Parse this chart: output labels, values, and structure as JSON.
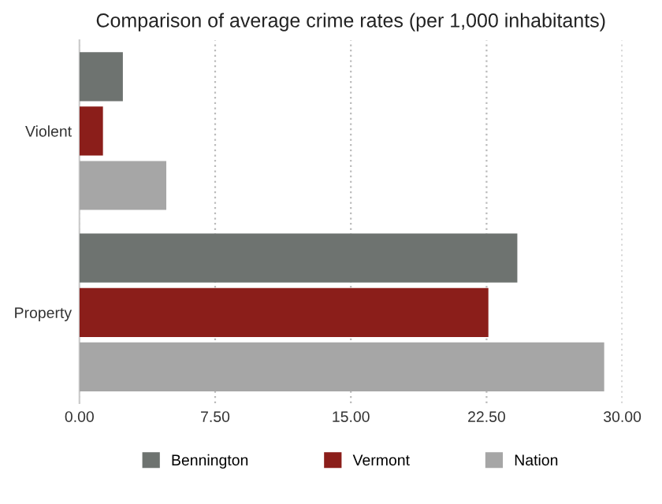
{
  "chart_data": {
    "type": "bar",
    "orientation": "horizontal",
    "title": "Comparison of average crime rates (per 1,000 inhabitants)",
    "categories": [
      "Violent",
      "Property"
    ],
    "series": [
      {
        "name": "Bennington",
        "color": "#6e7370",
        "values": [
          2.4,
          24.2
        ]
      },
      {
        "name": "Vermont",
        "color": "#8b1e1a",
        "values": [
          1.3,
          22.6
        ]
      },
      {
        "name": "Nation",
        "color": "#a6a6a6",
        "values": [
          4.8,
          29.0
        ]
      }
    ],
    "xlim": [
      0,
      30
    ],
    "xticks": [
      {
        "value": 0,
        "label": "0.00"
      },
      {
        "value": 7.5,
        "label": "7.50"
      },
      {
        "value": 15,
        "label": "15.00"
      },
      {
        "value": 22.5,
        "label": "22.50"
      },
      {
        "value": 30,
        "label": "30.00"
      }
    ],
    "grid": "x",
    "legend": "bottom"
  }
}
